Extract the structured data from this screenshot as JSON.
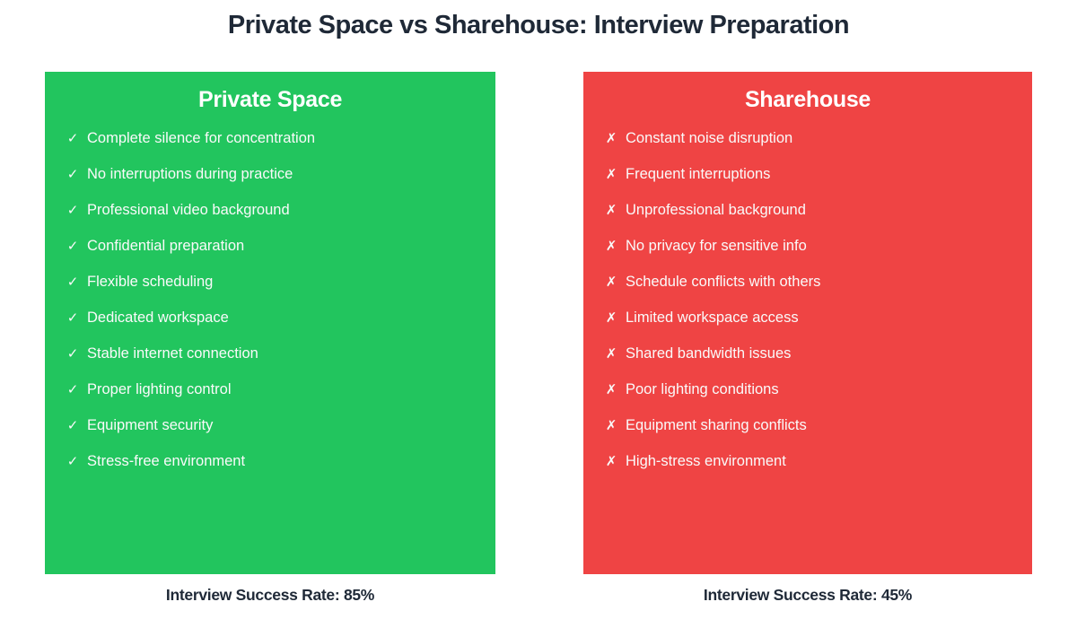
{
  "title": "Private Space vs Sharehouse: Interview Preparation",
  "colors": {
    "green": "#22c55e",
    "red": "#ef4444",
    "heading_text": "#1f2937",
    "item_text": "#fafafa"
  },
  "panels": [
    {
      "heading": "Private Space",
      "bg": "#22c55e",
      "icon_name": "check-icon",
      "icon_glyph": "✓",
      "items": [
        "Complete silence for concentration",
        "No interruptions during practice",
        "Professional video background",
        "Confidential preparation",
        "Flexible scheduling",
        "Dedicated workspace",
        "Stable internet connection",
        "Proper lighting control",
        "Equipment security",
        "Stress-free environment"
      ],
      "footer": "Interview Success Rate: 85%"
    },
    {
      "heading": "Sharehouse",
      "bg": "#ef4444",
      "icon_name": "cross-icon",
      "icon_glyph": "✗",
      "items": [
        "Constant noise disruption",
        "Frequent interruptions",
        "Unprofessional background",
        "No privacy for sensitive info",
        "Schedule conflicts with others",
        "Limited workspace access",
        "Shared bandwidth issues",
        "Poor lighting conditions",
        "Equipment sharing conflicts",
        "High-stress environment"
      ],
      "footer": "Interview Success Rate: 45%"
    }
  ]
}
